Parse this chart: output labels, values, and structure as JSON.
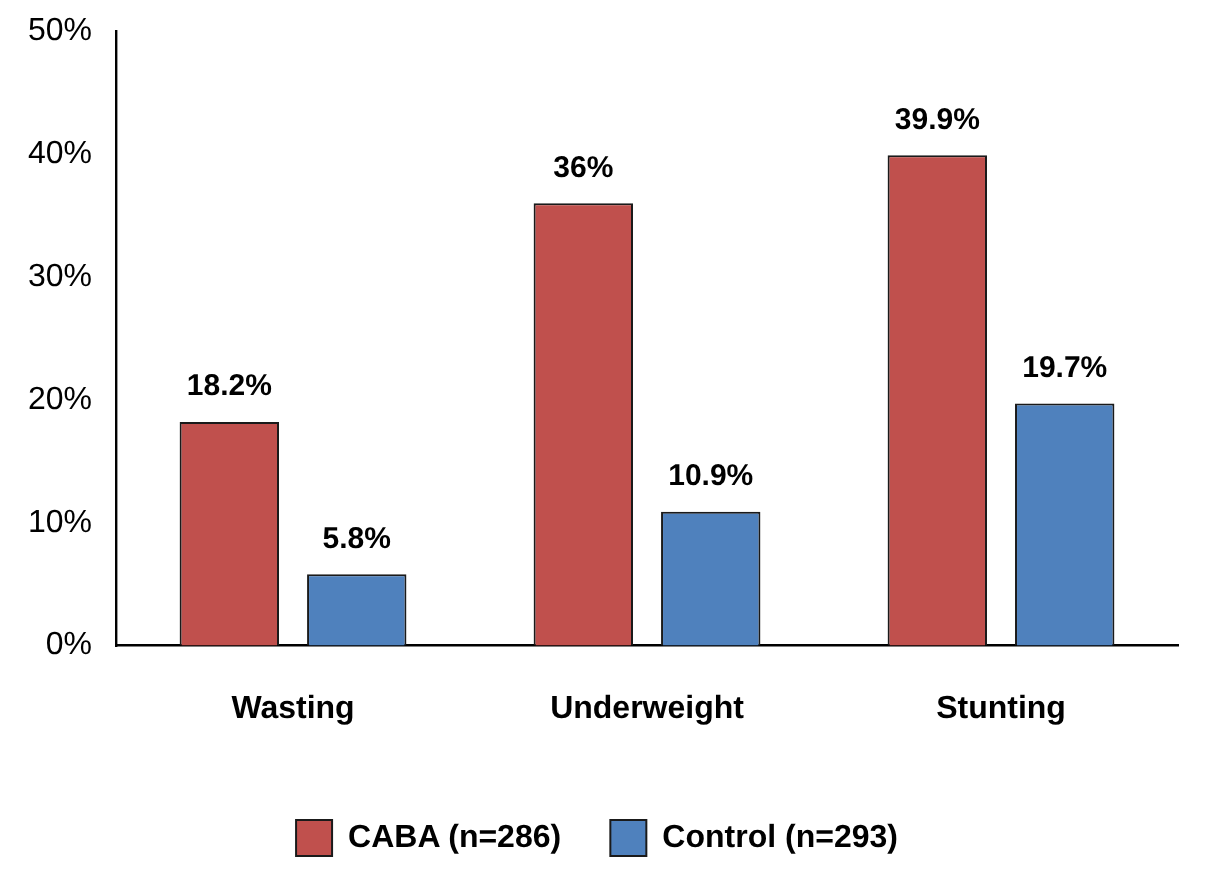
{
  "chart_data": {
    "type": "bar",
    "categories": [
      "Wasting",
      "Underweight",
      "Stunting"
    ],
    "series": [
      {
        "name": "CABA (n=286)",
        "color": "#c0504d",
        "values": [
          18.2,
          36,
          39.9
        ],
        "value_labels": [
          "18.2%",
          "36%",
          "39.9%"
        ]
      },
      {
        "name": "Control (n=293)",
        "color": "#4f81bd",
        "values": [
          5.8,
          10.9,
          19.7
        ],
        "value_labels": [
          "5.8%",
          "10.9%",
          "19.7%"
        ]
      }
    ],
    "ylim": [
      0,
      50
    ],
    "yticks": [
      {
        "value": 0,
        "label": "0%"
      },
      {
        "value": 10,
        "label": "10%"
      },
      {
        "value": 20,
        "label": "20%"
      },
      {
        "value": 30,
        "label": "30%"
      },
      {
        "value": 40,
        "label": "40%"
      },
      {
        "value": 50,
        "label": "50%"
      }
    ],
    "grid": false,
    "legend": "bottom"
  }
}
